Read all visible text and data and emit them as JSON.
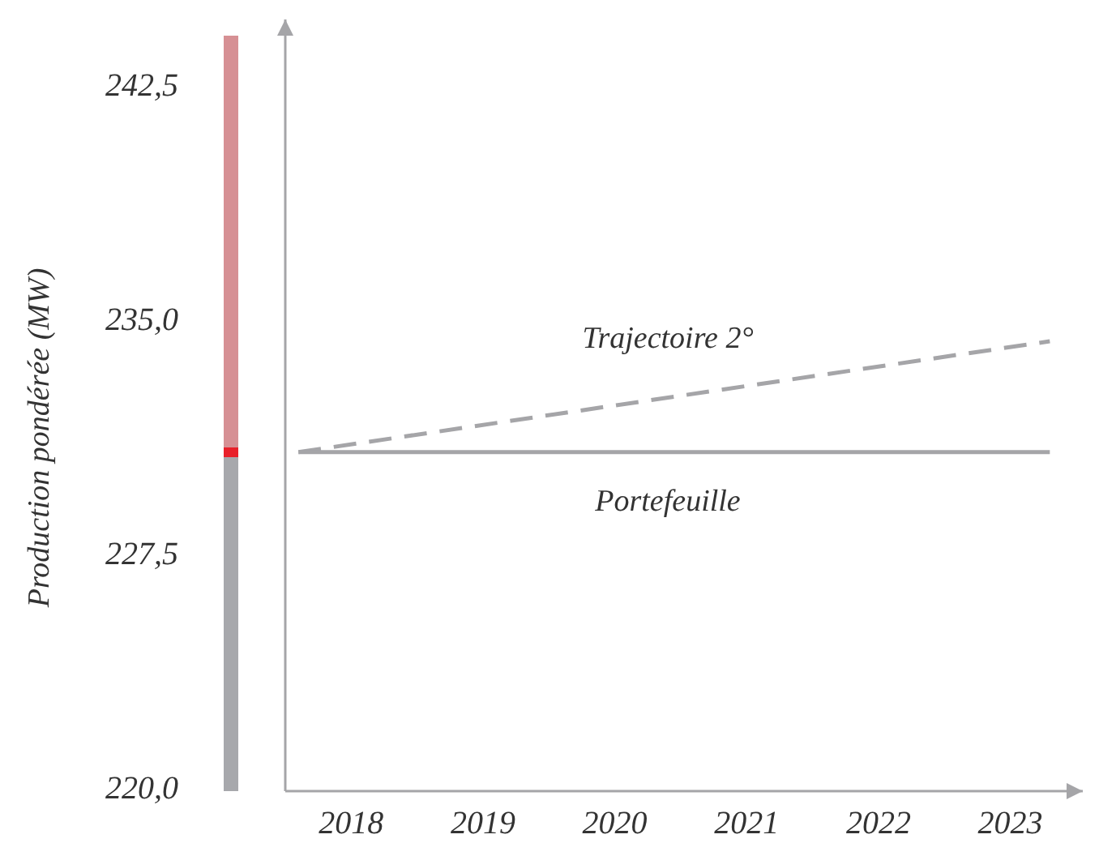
{
  "chart_data": {
    "type": "line",
    "ylabel": "Production pondérée (MW)",
    "x": [
      2017.6,
      2023.3
    ],
    "xlim": [
      2017.5,
      2023.55
    ],
    "xticks": [
      2018,
      2019,
      2020,
      2021,
      2022,
      2023
    ],
    "ylim": [
      220,
      244.7
    ],
    "yticks": [
      {
        "value": 220,
        "label": "220,0"
      },
      {
        "value": 227.5,
        "label": "227,5"
      },
      {
        "value": 235,
        "label": "235,0"
      },
      {
        "value": 242.5,
        "label": "242,5"
      }
    ],
    "series": [
      {
        "name": "Trajectoire 2°",
        "color": "#a5a5a8",
        "values": [
          230.85,
          234.4
        ],
        "line_style": "dashed"
      },
      {
        "name": "Portefeuille",
        "color": "#a5a5a8",
        "values": [
          230.85,
          230.85
        ],
        "line_style": "solid"
      }
    ],
    "grid": false,
    "legend": false,
    "marker": "none"
  }
}
